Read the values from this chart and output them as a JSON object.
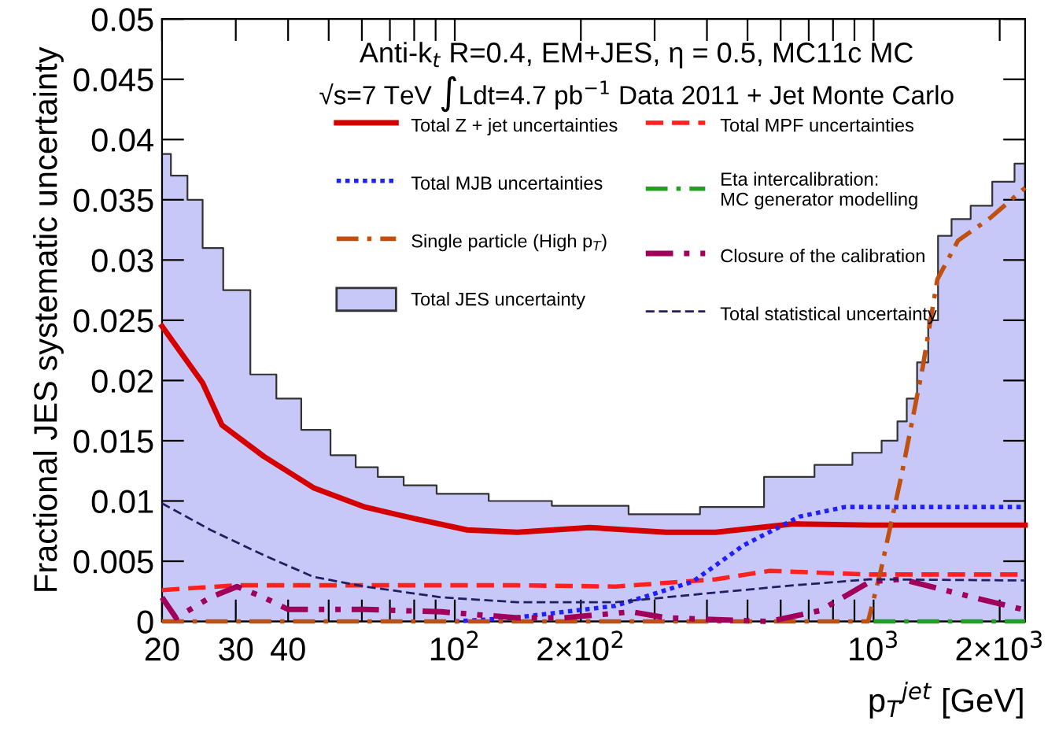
{
  "chart_data": {
    "type": "line",
    "ylabel": "Fractional JES systematic uncertainty",
    "xlabel": "p$_{T}$$^{jet}$ [GeV]",
    "annotations": [
      "Anti-k$_{t}$ R=0.4, EM+JES, η = 0.5, MC11c MC",
      "√s=7 TeV ∫Ldt=4.7 pb$^{−1}$ Data 2011 + Jet Monte Carlo"
    ],
    "log": "x",
    "grid": false,
    "legend": "top",
    "xlim": [
      20,
      2300
    ],
    "ylim": [
      0,
      0.05
    ],
    "xticks": [
      20,
      30,
      40,
      {
        "value": 50,
        "label": null
      },
      {
        "value": 60,
        "label": null
      },
      {
        "value": 70,
        "label": null
      },
      {
        "value": 80,
        "label": null
      },
      {
        "value": 90,
        "label": null
      },
      {
        "value": 100,
        "label": "10$^{2}$"
      },
      {
        "value": 200,
        "label": "2×10$^{2}$"
      },
      {
        "value": 300,
        "label": null
      },
      {
        "value": 400,
        "label": null
      },
      {
        "value": 500,
        "label": null
      },
      {
        "value": 600,
        "label": null
      },
      {
        "value": 700,
        "label": null
      },
      {
        "value": 800,
        "label": null
      },
      {
        "value": 900,
        "label": null
      },
      {
        "value": 1000,
        "label": "10$^{3}$"
      },
      {
        "value": 2000,
        "label": "2×10$^{3}$"
      }
    ],
    "yticks": [
      0,
      0.005,
      0.01,
      0.015,
      0.02,
      0.025,
      0.03,
      0.035,
      0.04,
      0.045,
      0.05
    ],
    "series": [
      {
        "name": "Total JES uncertainty",
        "type": "area",
        "color": "#c8c8f8",
        "x": [
          20,
          22,
          24,
          26,
          30,
          35,
          40,
          46,
          55,
          61,
          70,
          81,
          100,
          141,
          200,
          320,
          450,
          645,
          800,
          980,
          1110,
          1170,
          1230,
          1310,
          1390,
          1460,
          1610,
          1800,
          2040,
          2300
        ],
        "values": [
          0.0388,
          0.037,
          0.035,
          0.031,
          0.0275,
          0.0205,
          0.0185,
          0.0159,
          0.0138,
          0.0128,
          0.012,
          0.0113,
          0.0106,
          0.01,
          0.0096,
          0.0089,
          0.0095,
          0.012,
          0.013,
          0.014,
          0.015,
          0.0166,
          0.0185,
          0.0215,
          0.025,
          0.032,
          0.0334,
          0.0345,
          0.0365,
          0.038
        ]
      },
      {
        "name": "Total Z + jet uncertainties",
        "color": "#d40000",
        "line_style": "solid",
        "x": [
          20,
          25,
          27.8,
          35,
          46,
          61,
          81,
          107,
          141,
          210,
          320,
          420,
          645,
          980,
          2300
        ],
        "values": [
          0.0245,
          0.0198,
          0.0163,
          0.0137,
          0.0111,
          0.0095,
          0.0085,
          0.0076,
          0.0074,
          0.0078,
          0.0074,
          0.0074,
          0.0081,
          0.008,
          0.008
        ]
      },
      {
        "name": "Total MPF uncertainties",
        "color": "#ff2020",
        "line_style": "dashed",
        "x": [
          20,
          30,
          141,
          242,
          420,
          565,
          980,
          2300
        ],
        "values": [
          0.0026,
          0.003,
          0.003,
          0.0029,
          0.0035,
          0.0042,
          0.0039,
          0.0039
        ]
      },
      {
        "name": "Total MJB uncertainties",
        "color": "#2020ff",
        "line_style": "dotted",
        "x": [
          100,
          138,
          242,
          370,
          488,
          665,
          855,
          2300
        ],
        "values": [
          0.0,
          0.0003,
          0.0013,
          0.0033,
          0.0063,
          0.0087,
          0.0095,
          0.0095
        ]
      },
      {
        "name": "Eta intercalibration:\nMC generator modelling",
        "color": "#20a020",
        "line_style": "dashdot",
        "x": [
          1000,
          1500,
          2300
        ],
        "values": [
          0.0,
          0.0,
          0.0
        ]
      },
      {
        "name": "Single particle (High p$_{T}$)",
        "color": "#c05010",
        "line_style": "dashdot",
        "x": [
          20,
          970,
          1040,
          1170,
          1310,
          1420,
          1590,
          1900,
          2300
        ],
        "values": [
          0.0,
          0.0,
          0.0042,
          0.0124,
          0.0211,
          0.0284,
          0.0316,
          0.0335,
          0.036
        ]
      },
      {
        "name": "Closure of the calibration",
        "color": "#a0005a",
        "line_style": "dashdotdot",
        "x": [
          20,
          21.6,
          26.1,
          30.2,
          35,
          40,
          61,
          93,
          141,
          182,
          264,
          320,
          565,
          745,
          980,
          1170,
          1730,
          2270
        ],
        "values": [
          0.002,
          0.0003,
          0.002,
          0.0029,
          0.002,
          0.001,
          0.001,
          0.0008,
          0.0003,
          0.0003,
          0.0008,
          0.0003,
          0.0,
          0.0009,
          0.0033,
          0.0035,
          0.002,
          0.001
        ]
      },
      {
        "name": "Total statistical uncertainty",
        "color": "#202060",
        "line_style": "dashed",
        "x": [
          20,
          26.1,
          35,
          46,
          61,
          93,
          141,
          242,
          420,
          645,
          980,
          2300
        ],
        "values": [
          0.0098,
          0.0076,
          0.0055,
          0.0037,
          0.0029,
          0.002,
          0.0016,
          0.0016,
          0.0024,
          0.003,
          0.0035,
          0.0034
        ]
      }
    ]
  }
}
